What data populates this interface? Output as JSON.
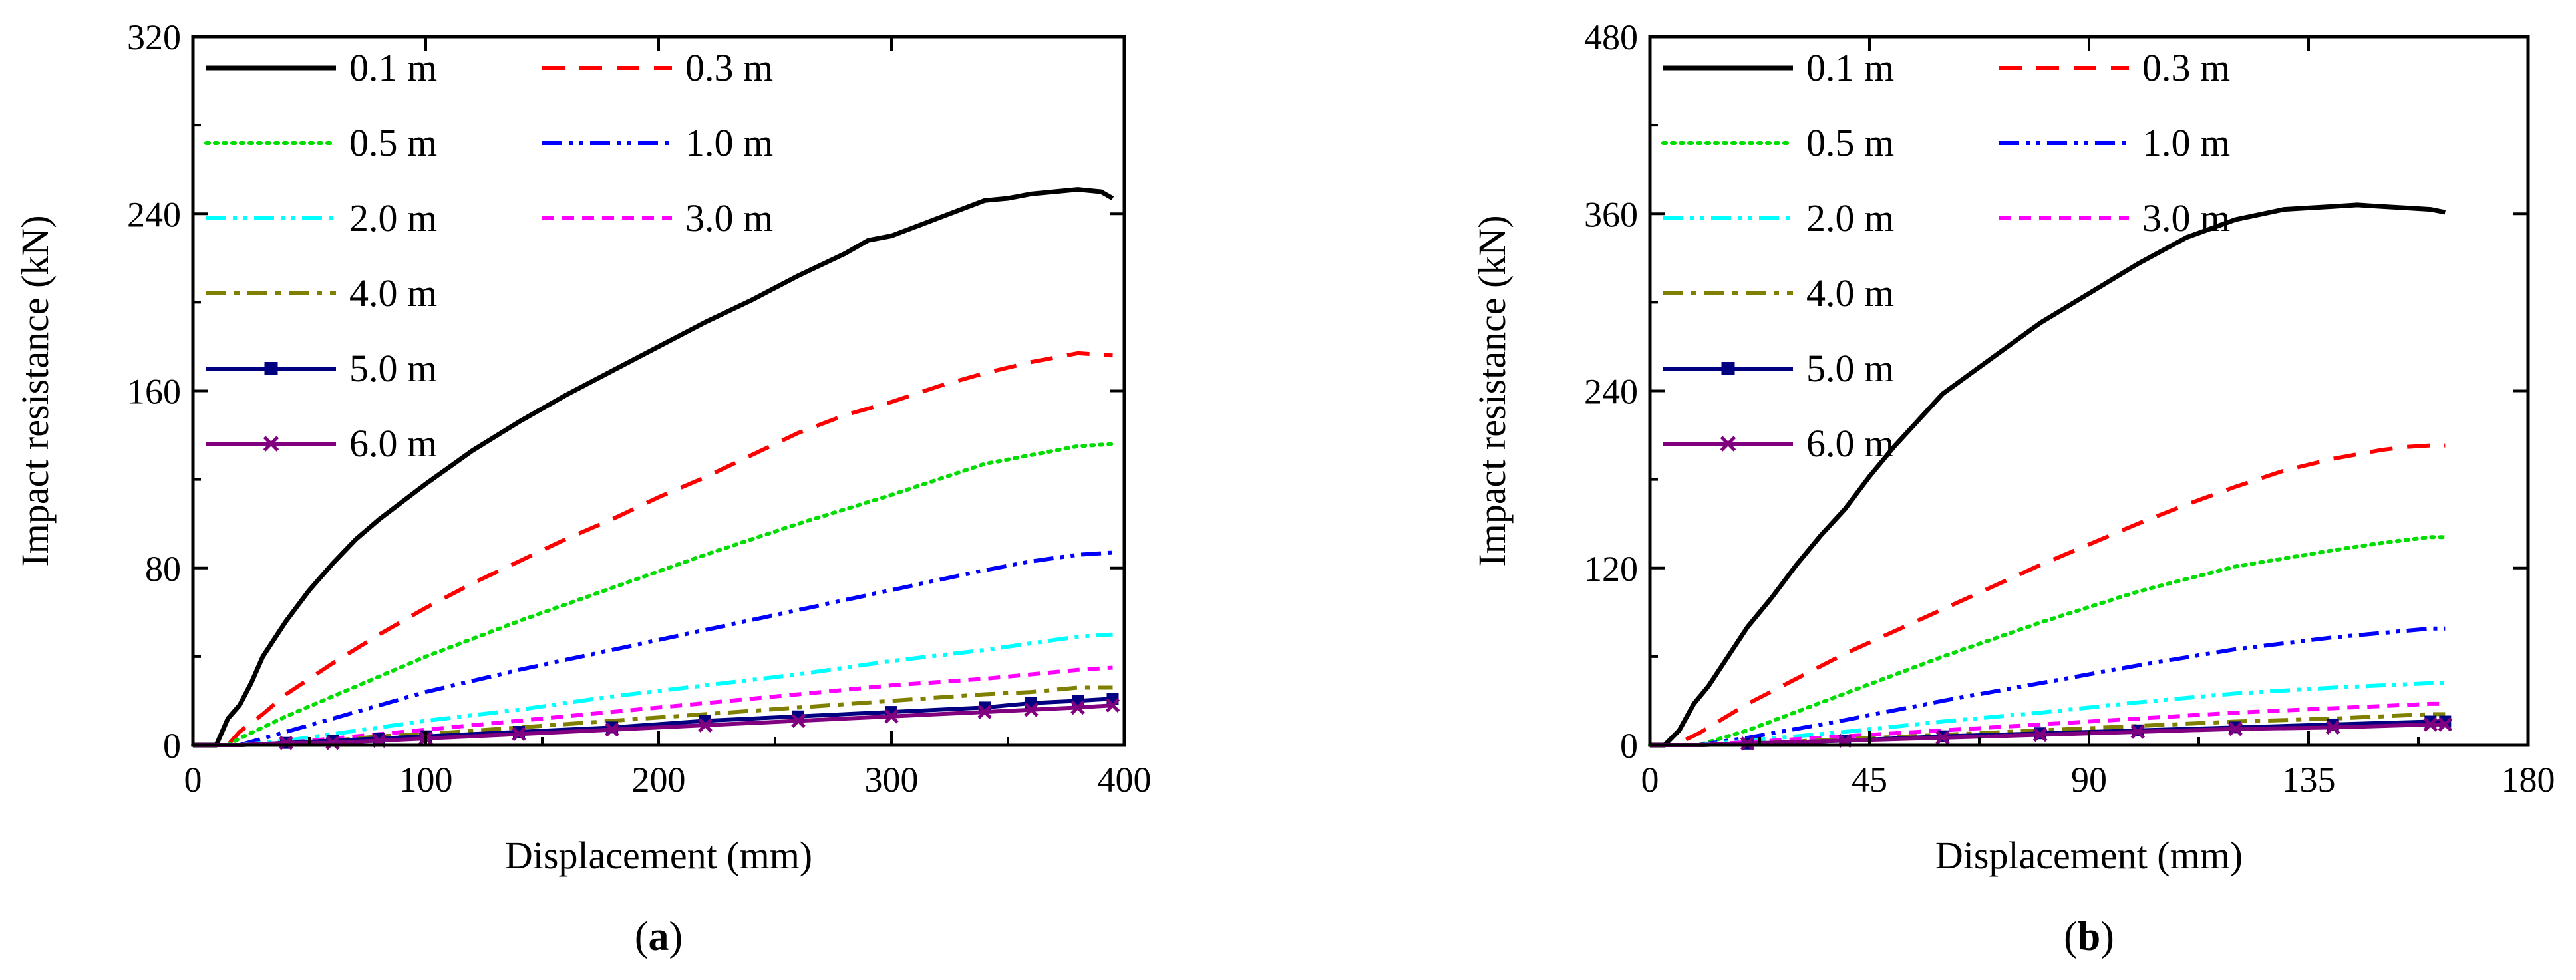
{
  "chart_data": [
    {
      "type": "line",
      "panel_label": "(a)",
      "xlabel": "Displacement (mm)",
      "ylabel": "Impact resistance (kN)",
      "xlim": [
        0,
        400
      ],
      "ylim": [
        0,
        320
      ],
      "xticks": [
        0,
        100,
        200,
        300,
        400
      ],
      "yticks": [
        0,
        80,
        160,
        240,
        320
      ],
      "legend_position": "top-left, two columns",
      "series": [
        {
          "name": "0.1 m",
          "color": "#000000",
          "style": "solid",
          "x": [
            0,
            10,
            15,
            20,
            25,
            30,
            40,
            50,
            60,
            70,
            80,
            90,
            100,
            120,
            140,
            160,
            180,
            200,
            220,
            240,
            260,
            280,
            290,
            300,
            320,
            340,
            350,
            360,
            370,
            380,
            390,
            395
          ],
          "y": [
            0,
            0,
            12,
            18,
            28,
            40,
            56,
            70,
            82,
            93,
            102,
            110,
            118,
            133,
            146,
            158,
            169,
            180,
            191,
            201,
            212,
            222,
            228,
            230,
            238,
            246,
            247,
            249,
            250,
            251,
            250,
            247
          ]
        },
        {
          "name": "0.3 m",
          "color": "#ff0000",
          "style": "dashed",
          "x": [
            0,
            15,
            20,
            30,
            40,
            60,
            80,
            100,
            120,
            140,
            160,
            180,
            200,
            220,
            240,
            260,
            280,
            300,
            320,
            340,
            360,
            380,
            395
          ],
          "y": [
            0,
            0,
            6,
            14,
            23,
            37,
            50,
            62,
            73,
            83,
            93,
            102,
            112,
            121,
            131,
            141,
            149,
            155,
            162,
            168,
            173,
            177,
            176
          ]
        },
        {
          "name": "0.5 m",
          "color": "#00dd00",
          "style": "dotted",
          "x": [
            0,
            15,
            20,
            40,
            60,
            80,
            100,
            140,
            180,
            220,
            260,
            300,
            320,
            340,
            360,
            380,
            395
          ],
          "y": [
            0,
            0,
            3,
            13,
            22,
            31,
            40,
            56,
            71,
            86,
            100,
            113,
            120,
            127,
            131,
            135,
            136
          ]
        },
        {
          "name": "1.0 m",
          "color": "#0000ff",
          "style": "dashdotdot",
          "x": [
            0,
            20,
            40,
            60,
            80,
            100,
            140,
            180,
            220,
            260,
            300,
            340,
            360,
            380,
            395
          ],
          "y": [
            0,
            0,
            6,
            12,
            18,
            24,
            34,
            43,
            52,
            61,
            70,
            79,
            83,
            86,
            87
          ]
        },
        {
          "name": "2.0 m",
          "color": "#00ffff",
          "style": "dashdotdot",
          "x": [
            0,
            20,
            40,
            60,
            80,
            100,
            140,
            180,
            220,
            260,
            300,
            340,
            360,
            380,
            395
          ],
          "y": [
            0,
            0,
            2,
            5,
            8,
            11,
            16,
            22,
            27,
            32,
            38,
            43,
            46,
            49,
            50
          ]
        },
        {
          "name": "3.0 m",
          "color": "#ff00ff",
          "style": "shortdash",
          "x": [
            0,
            20,
            40,
            60,
            80,
            100,
            140,
            180,
            220,
            260,
            300,
            340,
            360,
            380,
            395
          ],
          "y": [
            0,
            0,
            1,
            3,
            5,
            7,
            11,
            15,
            19,
            23,
            27,
            30,
            32,
            34,
            35
          ]
        },
        {
          "name": "4.0 m",
          "color": "#808000",
          "style": "dashdot",
          "x": [
            0,
            20,
            40,
            60,
            80,
            100,
            140,
            180,
            220,
            260,
            300,
            340,
            360,
            380,
            395
          ],
          "y": [
            0,
            0,
            1,
            2,
            4,
            5,
            8,
            11,
            14,
            17,
            20,
            23,
            24,
            26,
            26
          ]
        },
        {
          "name": "5.0 m",
          "color": "#000080",
          "style": "solid-square",
          "x": [
            0,
            20,
            40,
            60,
            80,
            100,
            140,
            180,
            220,
            260,
            300,
            340,
            360,
            380,
            395
          ],
          "y": [
            0,
            0,
            1,
            2,
            3,
            4,
            6,
            8,
            11,
            13,
            15,
            17,
            19,
            20,
            21
          ]
        },
        {
          "name": "6.0 m",
          "color": "#800080",
          "style": "solid-x",
          "x": [
            0,
            20,
            40,
            60,
            80,
            100,
            140,
            180,
            220,
            260,
            300,
            340,
            360,
            380,
            395
          ],
          "y": [
            0,
            0,
            1,
            1,
            2,
            3,
            5,
            7,
            9,
            11,
            13,
            15,
            16,
            17,
            18
          ]
        }
      ]
    },
    {
      "type": "line",
      "panel_label": "(b)",
      "xlabel": "Displacement (mm)",
      "ylabel": "Impact resistance (kN)",
      "xlim": [
        0,
        180
      ],
      "ylim": [
        0,
        480
      ],
      "xticks": [
        0,
        45,
        90,
        135,
        180
      ],
      "yticks": [
        0,
        120,
        240,
        360,
        480
      ],
      "legend_position": "top-left, two columns",
      "series": [
        {
          "name": "0.1 m",
          "color": "#000000",
          "style": "solid",
          "x": [
            0,
            3,
            6,
            9,
            12,
            15,
            20,
            25,
            30,
            35,
            40,
            45,
            50,
            55,
            60,
            70,
            80,
            90,
            100,
            110,
            120,
            130,
            135,
            140,
            145,
            150,
            155,
            160,
            163
          ],
          "y": [
            0,
            0,
            10,
            28,
            40,
            55,
            80,
            100,
            122,
            142,
            160,
            182,
            202,
            220,
            238,
            262,
            286,
            306,
            326,
            344,
            356,
            363,
            364,
            365,
            366,
            365,
            364,
            363,
            361
          ]
        },
        {
          "name": "0.3 m",
          "color": "#ff0000",
          "style": "dashed",
          "x": [
            0,
            5,
            10,
            20,
            30,
            40,
            50,
            60,
            70,
            80,
            90,
            100,
            110,
            120,
            130,
            140,
            150,
            155,
            160,
            163
          ],
          "y": [
            0,
            0,
            8,
            28,
            45,
            62,
            77,
            92,
            107,
            122,
            136,
            150,
            163,
            175,
            186,
            194,
            200,
            202,
            203,
            203
          ]
        },
        {
          "name": "0.5 m",
          "color": "#00dd00",
          "style": "dotted",
          "x": [
            0,
            10,
            20,
            40,
            60,
            80,
            100,
            120,
            140,
            150,
            160,
            163
          ],
          "y": [
            0,
            0,
            10,
            35,
            60,
            83,
            104,
            121,
            132,
            137,
            141,
            141
          ]
        },
        {
          "name": "1.0 m",
          "color": "#0000ff",
          "style": "dashdotdot",
          "x": [
            0,
            10,
            20,
            40,
            60,
            80,
            100,
            120,
            140,
            150,
            160,
            163
          ],
          "y": [
            0,
            0,
            5,
            17,
            30,
            42,
            54,
            65,
            73,
            76,
            79,
            79
          ]
        },
        {
          "name": "2.0 m",
          "color": "#00ffff",
          "style": "dashdotdot",
          "x": [
            0,
            10,
            20,
            40,
            60,
            80,
            100,
            120,
            140,
            160,
            163
          ],
          "y": [
            0,
            0,
            3,
            9,
            16,
            22,
            29,
            35,
            39,
            42,
            42
          ]
        },
        {
          "name": "3.0 m",
          "color": "#ff00ff",
          "style": "shortdash",
          "x": [
            0,
            10,
            20,
            40,
            60,
            80,
            100,
            120,
            140,
            160,
            163
          ],
          "y": [
            0,
            0,
            2,
            6,
            10,
            14,
            18,
            22,
            25,
            28,
            28
          ]
        },
        {
          "name": "4.0 m",
          "color": "#808000",
          "style": "dashdot",
          "x": [
            0,
            10,
            20,
            40,
            60,
            80,
            100,
            120,
            140,
            160,
            163
          ],
          "y": [
            0,
            0,
            1,
            4,
            7,
            10,
            13,
            16,
            18,
            21,
            21
          ]
        },
        {
          "name": "5.0 m",
          "color": "#000080",
          "style": "solid-square",
          "x": [
            0,
            10,
            20,
            40,
            60,
            80,
            100,
            120,
            140,
            160,
            163
          ],
          "y": [
            0,
            0,
            1,
            3,
            6,
            8,
            10,
            12,
            14,
            16,
            16
          ]
        },
        {
          "name": "6.0 m",
          "color": "#800080",
          "style": "solid-x",
          "x": [
            0,
            10,
            20,
            40,
            60,
            80,
            100,
            120,
            140,
            160,
            163
          ],
          "y": [
            0,
            0,
            1,
            3,
            5,
            7,
            9,
            11,
            12,
            14,
            14
          ]
        }
      ]
    }
  ]
}
